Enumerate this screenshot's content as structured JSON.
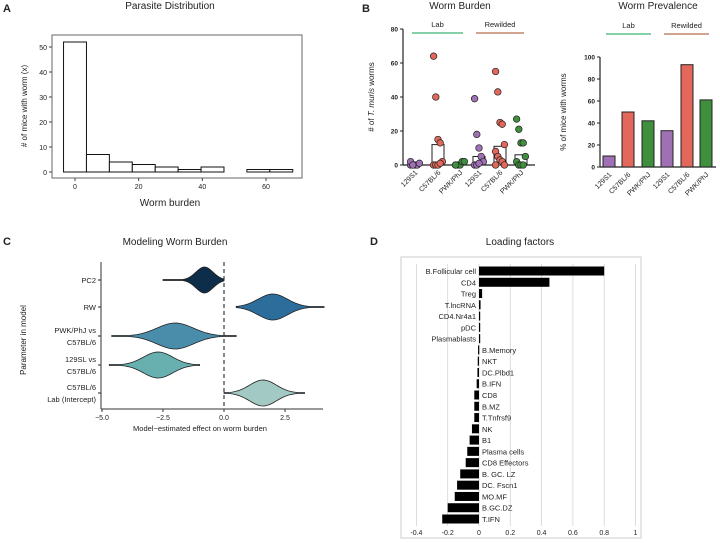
{
  "panel_labels": [
    "A",
    "B",
    "C",
    "D"
  ],
  "chart_data": [
    {
      "id": "A",
      "type": "bar",
      "title": "Parasite Distribution",
      "xlabel": "Worm burden",
      "ylabel": "# of mice with worm (x)",
      "bin_width": 7.2,
      "bin_start": -3.6,
      "values": [
        52,
        7,
        4,
        3,
        2,
        1,
        2,
        0,
        1,
        1
      ],
      "xlim": [
        -7,
        72
      ],
      "ylim": [
        -2,
        55
      ],
      "xticks": [
        0,
        20,
        40,
        60
      ],
      "yticks": [
        0,
        10,
        20,
        30,
        40,
        50
      ]
    },
    {
      "id": "B-left",
      "type": "scatter",
      "title": "Worm Burden",
      "ylabel_prefix": "# of ",
      "ylabel_italic": "T. muris",
      "ylabel_suffix": " worms",
      "ylim": [
        0,
        80
      ],
      "yticks": [
        0,
        20,
        40,
        60,
        80
      ],
      "groups": [
        {
          "label": "Lab",
          "color": "#5cc08a"
        },
        {
          "label": "Rewilded",
          "color": "#c0866a"
        }
      ],
      "categories": [
        "129S1",
        "C57BL/6",
        "PWK/PhJ",
        "129S1",
        "C57BL/6",
        "PWK/PhJ"
      ],
      "colors": [
        "#a070b5",
        "#e3675a",
        "#3f8f3f",
        "#a070b5",
        "#e3675a",
        "#3f8f3f"
      ],
      "means": [
        0.5,
        12,
        0.5,
        5,
        11,
        6
      ],
      "points": [
        [
          0,
          0,
          0,
          0,
          1,
          2,
          0
        ],
        [
          64,
          40,
          15,
          13,
          2,
          0,
          0,
          0,
          1
        ],
        [
          0,
          0,
          0,
          2,
          2,
          0
        ],
        [
          39,
          18,
          10,
          5,
          2,
          0,
          0,
          1
        ],
        [
          55,
          43,
          25,
          24,
          12,
          8,
          5,
          3,
          2,
          0,
          0
        ],
        [
          27,
          21,
          13,
          13,
          5,
          2,
          0,
          0,
          0
        ]
      ]
    },
    {
      "id": "B-right",
      "type": "bar",
      "title": "Worm Prevalence",
      "ylabel": "% of mice with worms",
      "ylim": [
        0,
        100
      ],
      "yticks": [
        0,
        20,
        40,
        60,
        80,
        100
      ],
      "groups": [
        {
          "label": "Lab",
          "color": "#5cc08a"
        },
        {
          "label": "Rewilded",
          "color": "#c0866a"
        }
      ],
      "categories": [
        "129S1",
        "C57BL/6",
        "PWK/PhJ",
        "129S1",
        "C57BL/6",
        "PWK/PhJ"
      ],
      "colors": [
        "#a070b5",
        "#e3675a",
        "#3f8f3f",
        "#a070b5",
        "#e3675a",
        "#3f8f3f"
      ],
      "values": [
        10,
        50,
        42,
        33,
        93,
        61
      ]
    },
    {
      "id": "C",
      "type": "violin",
      "title": "Modeling Worm Burden",
      "xlabel": "Model−estimated effect on worm burden",
      "ylabel": "Parameter in model",
      "xlim": [
        -5,
        4
      ],
      "xticks": [
        -5.0,
        -2.5,
        0.0,
        2.5
      ],
      "xtick_labels": [
        "−5.0",
        "−2.5",
        "0.0",
        "2.5"
      ],
      "reference_line": 0,
      "series": [
        {
          "name": [
            "PC2"
          ],
          "min": -2.5,
          "center": -0.8,
          "max": 0.0,
          "spread": 0.35,
          "color": "#0d2d48"
        },
        {
          "name": [
            "RW"
          ],
          "min": 0.5,
          "center": 2.0,
          "max": 4.1,
          "spread": 0.6,
          "color": "#2d6d9c"
        },
        {
          "name": [
            "PWK/PhJ vs",
            "C57BL/6"
          ],
          "min": -4.6,
          "center": -2.0,
          "max": 0.5,
          "spread": 0.75,
          "color": "#4a8dab"
        },
        {
          "name": [
            "129SL vs",
            "C57BL/6"
          ],
          "min": -4.7,
          "center": -2.7,
          "max": -1.0,
          "spread": 0.6,
          "color": "#68b0b0"
        },
        {
          "name": [
            "C57BL/6",
            "Lab (Intercept)"
          ],
          "min": 0.0,
          "center": 1.6,
          "max": 3.3,
          "spread": 0.55,
          "color": "#a2c9c4"
        }
      ]
    },
    {
      "id": "D",
      "type": "bar",
      "orientation": "horizontal",
      "title": "Loading factors",
      "xlim": [
        -0.4,
        1
      ],
      "xticks": [
        -0.4,
        -0.2,
        0,
        0.2,
        0.4,
        0.6,
        0.8,
        1
      ],
      "categories": [
        "B.Follicular cell",
        "CD4",
        "Treg",
        "T.lncRNA",
        "CD4.Nr4a1",
        "pDC",
        "Plasmablasts",
        "B.Memory",
        "NKT",
        "DC.Plbd1",
        "B.IFN",
        "CD8",
        "B.MZ",
        "T.Tnfrsf9",
        "NK",
        "B1",
        "Plasma cells",
        "CD8 Effectors",
        "B. GC. LZ",
        "DC. Fscn1",
        "MO.MF",
        "B.GC.DZ",
        "T.IFN"
      ],
      "values": [
        0.8,
        0.45,
        0.02,
        0.01,
        0.006,
        0.004,
        0.002,
        -0.006,
        -0.008,
        -0.01,
        -0.015,
        -0.03,
        -0.03,
        -0.03,
        -0.045,
        -0.06,
        -0.075,
        -0.085,
        -0.12,
        -0.14,
        -0.155,
        -0.2,
        -0.235
      ]
    }
  ]
}
